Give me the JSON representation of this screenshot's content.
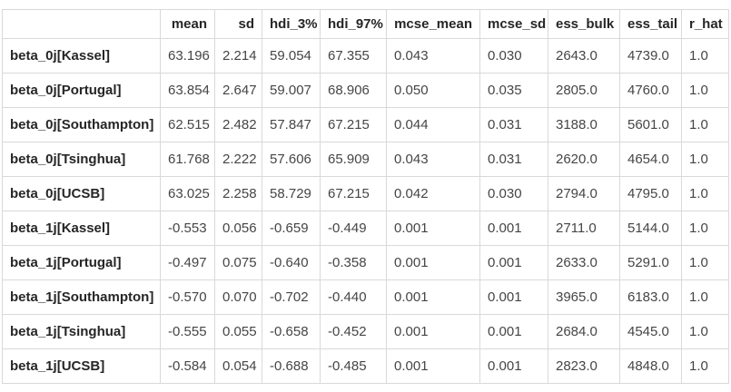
{
  "chart_data": {
    "type": "table",
    "title": "Posterior summary statistics table",
    "corner_label": "",
    "columns": [
      "mean",
      "sd",
      "hdi_3%",
      "hdi_97%",
      "mcse_mean",
      "mcse_sd",
      "ess_bulk",
      "ess_tail",
      "r_hat"
    ],
    "rows": [
      {
        "label": "beta_0j[Kassel]",
        "values": [
          "63.196",
          "2.214",
          "59.054",
          "67.355",
          "0.043",
          "0.030",
          "2643.0",
          "4739.0",
          "1.0"
        ]
      },
      {
        "label": "beta_0j[Portugal]",
        "values": [
          "63.854",
          "2.647",
          "59.007",
          "68.906",
          "0.050",
          "0.035",
          "2805.0",
          "4760.0",
          "1.0"
        ]
      },
      {
        "label": "beta_0j[Southampton]",
        "values": [
          "62.515",
          "2.482",
          "57.847",
          "67.215",
          "0.044",
          "0.031",
          "3188.0",
          "5601.0",
          "1.0"
        ]
      },
      {
        "label": "beta_0j[Tsinghua]",
        "values": [
          "61.768",
          "2.222",
          "57.606",
          "65.909",
          "0.043",
          "0.031",
          "2620.0",
          "4654.0",
          "1.0"
        ]
      },
      {
        "label": "beta_0j[UCSB]",
        "values": [
          "63.025",
          "2.258",
          "58.729",
          "67.215",
          "0.042",
          "0.030",
          "2794.0",
          "4795.0",
          "1.0"
        ]
      },
      {
        "label": "beta_1j[Kassel]",
        "values": [
          "-0.553",
          "0.056",
          "-0.659",
          "-0.449",
          "0.001",
          "0.001",
          "2711.0",
          "5144.0",
          "1.0"
        ]
      },
      {
        "label": "beta_1j[Portugal]",
        "values": [
          "-0.497",
          "0.075",
          "-0.640",
          "-0.358",
          "0.001",
          "0.001",
          "2633.0",
          "5291.0",
          "1.0"
        ]
      },
      {
        "label": "beta_1j[Southampton]",
        "values": [
          "-0.570",
          "0.070",
          "-0.702",
          "-0.440",
          "0.001",
          "0.001",
          "3965.0",
          "6183.0",
          "1.0"
        ]
      },
      {
        "label": "beta_1j[Tsinghua]",
        "values": [
          "-0.555",
          "0.055",
          "-0.658",
          "-0.452",
          "0.001",
          "0.001",
          "2684.0",
          "4545.0",
          "1.0"
        ]
      },
      {
        "label": "beta_1j[UCSB]",
        "values": [
          "-0.584",
          "0.054",
          "-0.688",
          "-0.485",
          "0.001",
          "0.001",
          "2823.0",
          "4848.0",
          "1.0"
        ]
      }
    ],
    "layout_hints": {
      "header_align": "right",
      "cell_align": "left",
      "row_label_align": "left",
      "grid": true
    },
    "colors": {
      "border": "#d9d9d9",
      "header_text": "#262626",
      "cell_text": "#454545",
      "background": "#ffffff"
    }
  }
}
